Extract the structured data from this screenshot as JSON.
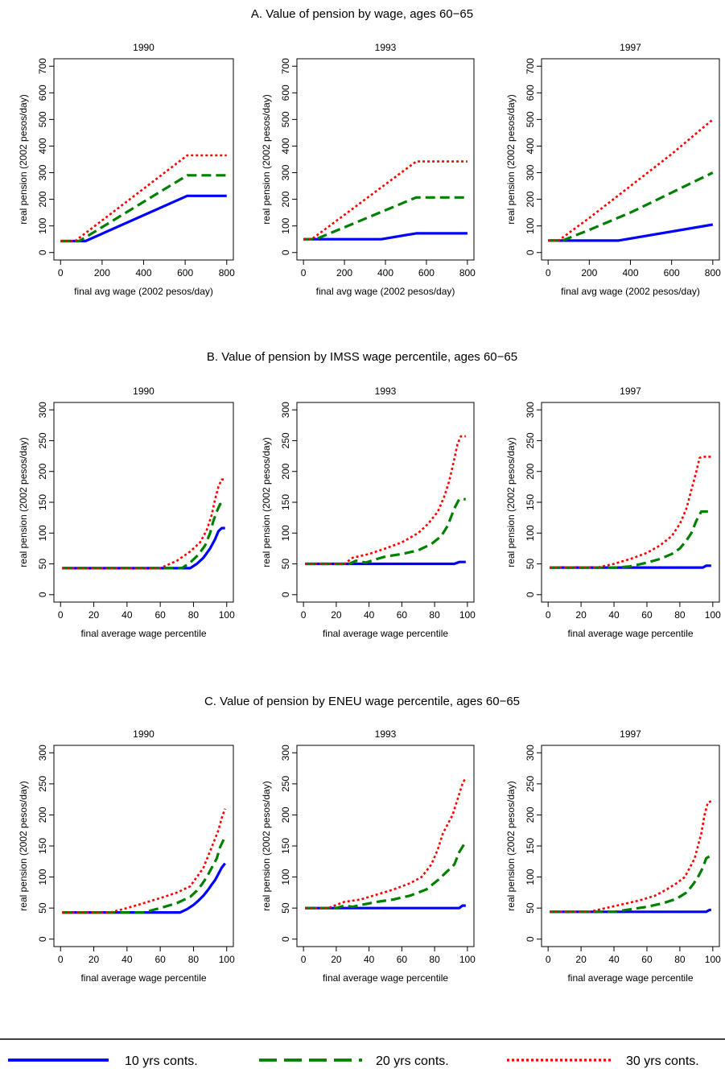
{
  "legend": {
    "items": [
      {
        "label": "10 yrs conts.",
        "color": "#0000ff",
        "style": "solid"
      },
      {
        "label": "20 yrs conts.",
        "color": "#008000",
        "style": "longdash"
      },
      {
        "label": "30 yrs conts.",
        "color": "#ff0000",
        "style": "dot"
      }
    ]
  },
  "chart_data": [
    {
      "panel": "A",
      "title": "A. Value of pension by wage, ages 60−65",
      "charts": [
        {
          "type": "line",
          "subtitle": "1990",
          "xlabel": "final avg wage (2002 pesos/day)",
          "ylabel": "real pension (2002 pesos/day)",
          "xlim": [
            0,
            800
          ],
          "ylim": [
            0,
            700
          ],
          "xticks": [
            0,
            200,
            400,
            600,
            800
          ],
          "yticks": [
            0,
            100,
            200,
            300,
            400,
            500,
            600,
            700
          ],
          "series": [
            {
              "name": "10 yrs conts.",
              "x": [
                0,
                120,
                610,
                800
              ],
              "y": [
                43,
                43,
                213,
                213
              ]
            },
            {
              "name": "20 yrs conts.",
              "x": [
                0,
                90,
                610,
                800
              ],
              "y": [
                43,
                43,
                290,
                290
              ]
            },
            {
              "name": "30 yrs conts.",
              "x": [
                0,
                70,
                610,
                800
              ],
              "y": [
                43,
                43,
                365,
                365
              ]
            }
          ]
        },
        {
          "type": "line",
          "subtitle": "1993",
          "xlabel": "final avg wage (2002 pesos/day)",
          "ylabel": "real pension (2002 pesos/day)",
          "xlim": [
            0,
            800
          ],
          "ylim": [
            0,
            700
          ],
          "xticks": [
            0,
            200,
            400,
            600,
            800
          ],
          "yticks": [
            0,
            100,
            200,
            300,
            400,
            500,
            600,
            700
          ],
          "series": [
            {
              "name": "10 yrs conts.",
              "x": [
                0,
                380,
                550,
                800
              ],
              "y": [
                50,
                50,
                72,
                72
              ]
            },
            {
              "name": "20 yrs conts.",
              "x": [
                0,
                60,
                550,
                800
              ],
              "y": [
                50,
                50,
                207,
                207
              ]
            },
            {
              "name": "30 yrs conts.",
              "x": [
                0,
                40,
                550,
                800
              ],
              "y": [
                50,
                50,
                342,
                342
              ]
            }
          ]
        },
        {
          "type": "line",
          "subtitle": "1997",
          "xlabel": "final avg wage (2002 pesos/day)",
          "ylabel": "real pension (2002 pesos/day)",
          "xlim": [
            0,
            800
          ],
          "ylim": [
            0,
            700
          ],
          "xticks": [
            0,
            200,
            400,
            600,
            800
          ],
          "yticks": [
            0,
            100,
            200,
            300,
            400,
            500,
            600,
            700
          ],
          "series": [
            {
              "name": "10 yrs conts.",
              "x": [
                0,
                340,
                800
              ],
              "y": [
                45,
                45,
                105
              ]
            },
            {
              "name": "20 yrs conts.",
              "x": [
                0,
                70,
                200,
                400,
                600,
                800
              ],
              "y": [
                45,
                45,
                85,
                150,
                225,
                300
              ]
            },
            {
              "name": "30 yrs conts.",
              "x": [
                0,
                50,
                200,
                400,
                600,
                800
              ],
              "y": [
                45,
                45,
                130,
                250,
                370,
                500
              ]
            }
          ]
        }
      ]
    },
    {
      "panel": "B",
      "title": "B. Value of pension by IMSS wage percentile, ages 60−65",
      "charts": [
        {
          "type": "line",
          "subtitle": "1990",
          "xlabel": "final average wage percentile",
          "ylabel": "real pension (2002 pesos/day)",
          "xlim": [
            0,
            100
          ],
          "ylim": [
            0,
            300
          ],
          "xticks": [
            0,
            20,
            40,
            60,
            80,
            100
          ],
          "yticks": [
            0,
            50,
            100,
            150,
            200,
            250,
            300
          ],
          "series": [
            {
              "name": "10 yrs conts.",
              "x": [
                1,
                78,
                82,
                86,
                90,
                93,
                95,
                97,
                99
              ],
              "y": [
                43,
                43,
                50,
                60,
                75,
                90,
                103,
                108,
                108
              ]
            },
            {
              "name": "20 yrs conts.",
              "x": [
                1,
                73,
                78,
                83,
                87,
                90,
                92,
                94,
                96,
                99
              ],
              "y": [
                43,
                43,
                52,
                65,
                80,
                100,
                120,
                135,
                147,
                147
              ]
            },
            {
              "name": "30 yrs conts.",
              "x": [
                1,
                60,
                70,
                78,
                84,
                88,
                91,
                93,
                95,
                97,
                99
              ],
              "y": [
                43,
                43,
                55,
                70,
                85,
                105,
                130,
                155,
                175,
                187,
                187
              ]
            }
          ]
        },
        {
          "type": "line",
          "subtitle": "1993",
          "xlabel": "final average wage percentile",
          "ylabel": "real pension (2002 pesos/day)",
          "xlim": [
            0,
            100
          ],
          "ylim": [
            0,
            300
          ],
          "xticks": [
            0,
            20,
            40,
            60,
            80,
            100
          ],
          "yticks": [
            0,
            50,
            100,
            150,
            200,
            250,
            300
          ],
          "series": [
            {
              "name": "10 yrs conts.",
              "x": [
                1,
                92,
                95,
                99
              ],
              "y": [
                50,
                50,
                53,
                53
              ]
            },
            {
              "name": "20 yrs conts.",
              "x": [
                1,
                28,
                32,
                38,
                45,
                50,
                60,
                70,
                78,
                84,
                88,
                92,
                95,
                99
              ],
              "y": [
                50,
                50,
                55,
                52,
                58,
                62,
                66,
                72,
                82,
                95,
                112,
                140,
                155,
                155
              ]
            },
            {
              "name": "30 yrs conts.",
              "x": [
                1,
                25,
                30,
                40,
                50,
                60,
                70,
                76,
                82,
                86,
                89,
                92,
                94,
                96,
                99
              ],
              "y": [
                50,
                50,
                60,
                66,
                75,
                85,
                100,
                115,
                135,
                160,
                185,
                220,
                245,
                257,
                257
              ]
            }
          ]
        },
        {
          "type": "line",
          "subtitle": "1997",
          "xlabel": "final average wage percentile",
          "ylabel": "real pension (2002 pesos/day)",
          "xlim": [
            0,
            100
          ],
          "ylim": [
            0,
            300
          ],
          "xticks": [
            0,
            20,
            40,
            60,
            80,
            100
          ],
          "yticks": [
            0,
            50,
            100,
            150,
            200,
            250,
            300
          ],
          "series": [
            {
              "name": "10 yrs conts.",
              "x": [
                1,
                94,
                96,
                99
              ],
              "y": [
                44,
                44,
                47,
                47
              ]
            },
            {
              "name": "20 yrs conts.",
              "x": [
                1,
                42,
                50,
                60,
                68,
                75,
                80,
                84,
                87,
                90,
                93,
                95,
                99
              ],
              "y": [
                44,
                44,
                46,
                52,
                58,
                66,
                75,
                88,
                100,
                120,
                135,
                135,
                135
              ]
            },
            {
              "name": "30 yrs conts.",
              "x": [
                1,
                30,
                40,
                50,
                60,
                68,
                75,
                80,
                84,
                87,
                90,
                92,
                94,
                99
              ],
              "y": [
                44,
                44,
                50,
                58,
                68,
                80,
                95,
                115,
                140,
                170,
                200,
                222,
                224,
                224
              ]
            }
          ]
        }
      ]
    },
    {
      "panel": "C",
      "title": "C. Value of pension by ENEU wage percentile, ages 60−65",
      "charts": [
        {
          "type": "line",
          "subtitle": "1990",
          "xlabel": "final average wage percentile",
          "ylabel": "real pension (2002 pesos/day)",
          "xlim": [
            0,
            100
          ],
          "ylim": [
            0,
            300
          ],
          "xticks": [
            0,
            20,
            40,
            60,
            80,
            100
          ],
          "yticks": [
            0,
            50,
            100,
            150,
            200,
            250,
            300
          ],
          "series": [
            {
              "name": "10 yrs conts.",
              "x": [
                1,
                72,
                76,
                80,
                83,
                86,
                89,
                91,
                93,
                95,
                97,
                99
              ],
              "y": [
                43,
                43,
                48,
                55,
                62,
                70,
                80,
                88,
                95,
                105,
                115,
                122
              ]
            },
            {
              "name": "20 yrs conts.",
              "x": [
                1,
                50,
                60,
                70,
                78,
                82,
                85,
                88,
                91,
                94,
                96,
                99
              ],
              "y": [
                43,
                43,
                50,
                58,
                68,
                78,
                88,
                100,
                115,
                130,
                148,
                165
              ]
            },
            {
              "name": "30 yrs conts.",
              "x": [
                1,
                30,
                40,
                50,
                60,
                70,
                78,
                82,
                86,
                89,
                92,
                95,
                97,
                99
              ],
              "y": [
                43,
                43,
                50,
                58,
                66,
                75,
                85,
                100,
                115,
                135,
                155,
                175,
                195,
                210
              ]
            }
          ]
        },
        {
          "type": "line",
          "subtitle": "1993",
          "xlabel": "final average wage percentile",
          "ylabel": "real pension (2002 pesos/day)",
          "xlim": [
            0,
            100
          ],
          "ylim": [
            0,
            300
          ],
          "xticks": [
            0,
            20,
            40,
            60,
            80,
            100
          ],
          "yticks": [
            0,
            50,
            100,
            150,
            200,
            250,
            300
          ],
          "series": [
            {
              "name": "10 yrs conts.",
              "x": [
                1,
                95,
                97,
                99
              ],
              "y": [
                50,
                50,
                54,
                54
              ]
            },
            {
              "name": "20 yrs conts.",
              "x": [
                1,
                20,
                25,
                30,
                35,
                45,
                55,
                65,
                75,
                82,
                88,
                92,
                95,
                99
              ],
              "y": [
                50,
                50,
                54,
                52,
                55,
                60,
                64,
                70,
                80,
                95,
                110,
                120,
                140,
                157
              ]
            },
            {
              "name": "30 yrs conts.",
              "x": [
                1,
                15,
                25,
                35,
                45,
                55,
                65,
                72,
                78,
                82,
                85,
                88,
                91,
                94,
                97,
                99
              ],
              "y": [
                50,
                50,
                60,
                64,
                72,
                80,
                90,
                100,
                120,
                145,
                170,
                185,
                200,
                225,
                250,
                260
              ]
            }
          ]
        },
        {
          "type": "line",
          "subtitle": "1997",
          "xlabel": "final average wage percentile",
          "ylabel": "real pension (2002 pesos/day)",
          "xlim": [
            0,
            100
          ],
          "ylim": [
            0,
            300
          ],
          "xticks": [
            0,
            20,
            40,
            60,
            80,
            100
          ],
          "yticks": [
            0,
            50,
            100,
            150,
            200,
            250,
            300
          ],
          "series": [
            {
              "name": "10 yrs conts.",
              "x": [
                1,
                96,
                98,
                99
              ],
              "y": [
                44,
                44,
                47,
                47
              ]
            },
            {
              "name": "20 yrs conts.",
              "x": [
                1,
                40,
                50,
                60,
                70,
                78,
                84,
                88,
                91,
                94,
                96,
                99
              ],
              "y": [
                44,
                44,
                48,
                52,
                58,
                65,
                75,
                88,
                100,
                115,
                130,
                135
              ]
            },
            {
              "name": "30 yrs conts.",
              "x": [
                1,
                25,
                35,
                45,
                55,
                65,
                72,
                78,
                83,
                86,
                89,
                91,
                93,
                95,
                97,
                99
              ],
              "y": [
                44,
                44,
                50,
                56,
                62,
                70,
                80,
                90,
                100,
                115,
                130,
                150,
                170,
                200,
                220,
                222
              ]
            }
          ]
        }
      ]
    }
  ]
}
